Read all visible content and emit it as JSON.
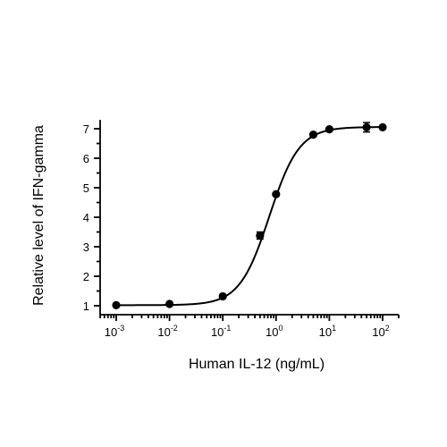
{
  "chart_data": {
    "type": "scatter",
    "xlabel": "Human IL-12 (ng/mL)",
    "ylabel": "Relative level of IFN-gamma",
    "xscale": "log",
    "xlim": [
      0.001,
      100
    ],
    "ylim": [
      1,
      7
    ],
    "x_tick_labels": [
      {
        "base": "10",
        "exp": "-3"
      },
      {
        "base": "10",
        "exp": "-2"
      },
      {
        "base": "10",
        "exp": "-1"
      },
      {
        "base": "10",
        "exp": "0"
      },
      {
        "base": "10",
        "exp": "1"
      },
      {
        "base": "10",
        "exp": "2"
      }
    ],
    "y_ticks": [
      1,
      2,
      3,
      4,
      5,
      6,
      7
    ],
    "grid": false,
    "legend": "none",
    "series": [
      {
        "x": [
          0.001,
          0.01,
          0.1,
          0.5,
          1,
          5,
          10,
          50,
          100
        ],
        "y": [
          1.02,
          1.06,
          1.32,
          3.38,
          4.78,
          6.8,
          6.98,
          7.05,
          7.05
        ],
        "error": [
          0,
          0,
          0,
          0.12,
          0.05,
          0,
          0,
          0.16,
          0
        ],
        "fit": "4PL sigmoid",
        "color": "#000000"
      }
    ]
  }
}
